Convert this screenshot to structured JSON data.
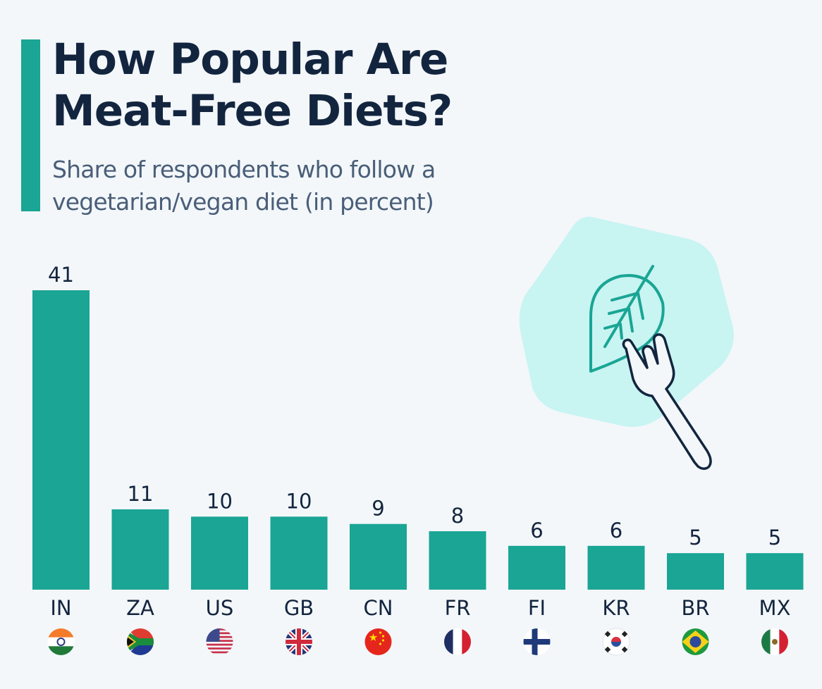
{
  "header": {
    "title": "How Popular Are\nMeat-Free Diets?",
    "subtitle": "Share of respondents who follow a\nvegetarian/vegan diet (in percent)"
  },
  "colors": {
    "accent": "#1aa594",
    "title": "#13253e",
    "subtitle": "#4a5e78",
    "background": "#f3f7fa",
    "illustration_blob": "#c8f4f2",
    "illustration_leaf": "#1aa594",
    "illustration_fork": "#13253e"
  },
  "illustration": {
    "icons": [
      "leaf-icon",
      "fork-icon"
    ]
  },
  "chart_data": {
    "type": "bar",
    "title": "How Popular Are Meat-Free Diets?",
    "subtitle": "Share of respondents who follow a vegetarian/vegan diet (in percent)",
    "xlabel": "",
    "ylabel": "",
    "ylim": [
      0,
      41
    ],
    "grid": false,
    "legend": "none",
    "categories": [
      "IN",
      "ZA",
      "US",
      "GB",
      "CN",
      "FR",
      "FI",
      "KR",
      "BR",
      "MX"
    ],
    "values": [
      41,
      11,
      10,
      10,
      9,
      8,
      6,
      6,
      5,
      5
    ],
    "value_labels": [
      "41",
      "11",
      "10",
      "10",
      "9",
      "8",
      "6",
      "6",
      "5",
      "5"
    ],
    "flags": [
      "india-flag-icon",
      "south-africa-flag-icon",
      "usa-flag-icon",
      "uk-flag-icon",
      "china-flag-icon",
      "france-flag-icon",
      "finland-flag-icon",
      "south-korea-flag-icon",
      "brazil-flag-icon",
      "mexico-flag-icon"
    ]
  }
}
